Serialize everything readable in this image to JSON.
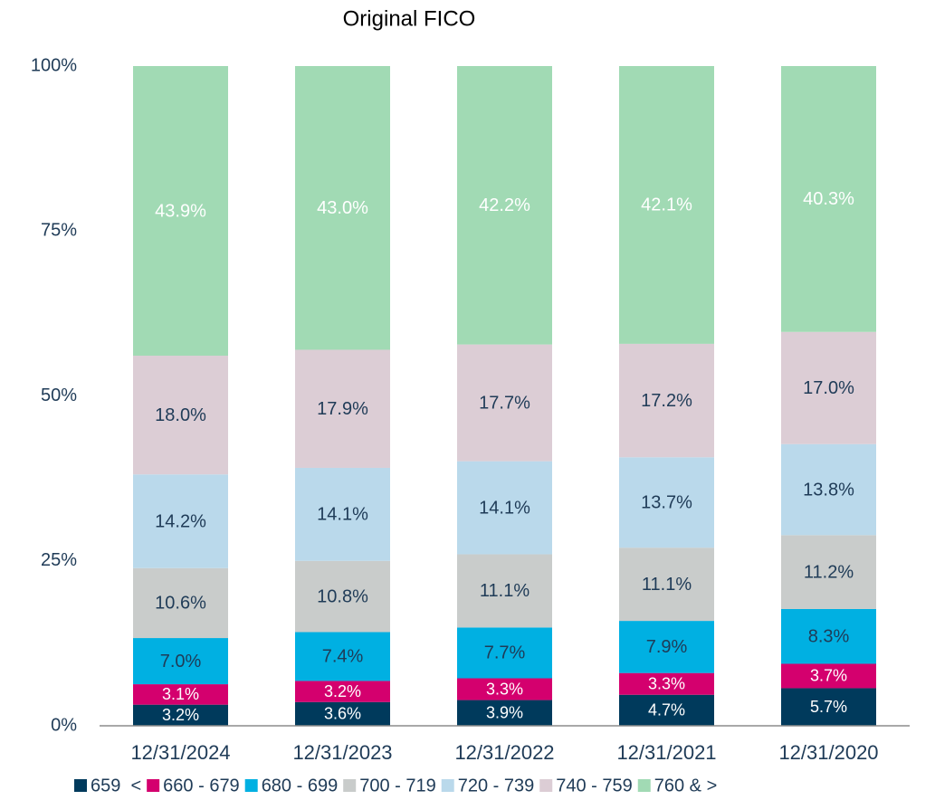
{
  "chart_data": {
    "type": "stacked_bar",
    "title": "Original FICO",
    "categories": [
      "12/31/2024",
      "12/31/2023",
      "12/31/2022",
      "12/31/2021",
      "12/31/2020"
    ],
    "series": [
      {
        "name": "659  <",
        "color": "#003a5c",
        "values": [
          3.2,
          3.6,
          3.9,
          4.7,
          5.7
        ],
        "value_labels": [
          "3.2%",
          "3.6%",
          "3.9%",
          "4.7%",
          "5.7%"
        ]
      },
      {
        "name": "660 - 679",
        "color": "#d4006e",
        "values": [
          3.1,
          3.2,
          3.3,
          3.3,
          3.7
        ],
        "value_labels": [
          "3.1%",
          "3.2%",
          "3.3%",
          "3.3%",
          "3.7%"
        ]
      },
      {
        "name": "680 - 699",
        "color": "#00b0e2",
        "values": [
          7.0,
          7.4,
          7.7,
          7.9,
          8.3
        ],
        "value_labels": [
          "7.0%",
          "7.4%",
          "7.7%",
          "7.9%",
          "8.3%"
        ]
      },
      {
        "name": "700 - 719",
        "color": "#c9cccb",
        "values": [
          10.6,
          10.8,
          11.1,
          11.1,
          11.2
        ],
        "value_labels": [
          "10.6%",
          "10.8%",
          "11.1%",
          "11.1%",
          "11.2%"
        ]
      },
      {
        "name": "720 - 739",
        "color": "#bad9eb",
        "values": [
          14.2,
          14.1,
          14.1,
          13.7,
          13.8
        ],
        "value_labels": [
          "14.2%",
          "14.1%",
          "14.1%",
          "13.7%",
          "13.8%"
        ]
      },
      {
        "name": "740 - 759",
        "color": "#dccdd5",
        "values": [
          18.0,
          17.9,
          17.7,
          17.2,
          17.0
        ],
        "value_labels": [
          "18.0%",
          "17.9%",
          "17.7%",
          "17.2%",
          "17.0%"
        ]
      },
      {
        "name": "760 & >",
        "color": "#a1dab4",
        "values": [
          43.9,
          43.0,
          42.2,
          42.1,
          40.3
        ],
        "value_labels": [
          "43.9%",
          "43.0%",
          "42.2%",
          "42.1%",
          "40.3%"
        ]
      }
    ],
    "ylim": [
      0,
      100
    ],
    "yticks": [
      {
        "value": 0,
        "label": "0%"
      },
      {
        "value": 25,
        "label": "25%"
      },
      {
        "value": 50,
        "label": "50%"
      },
      {
        "value": 75,
        "label": "75%"
      },
      {
        "value": 100,
        "label": "100%"
      }
    ],
    "grid": false,
    "legend": "bottom"
  }
}
